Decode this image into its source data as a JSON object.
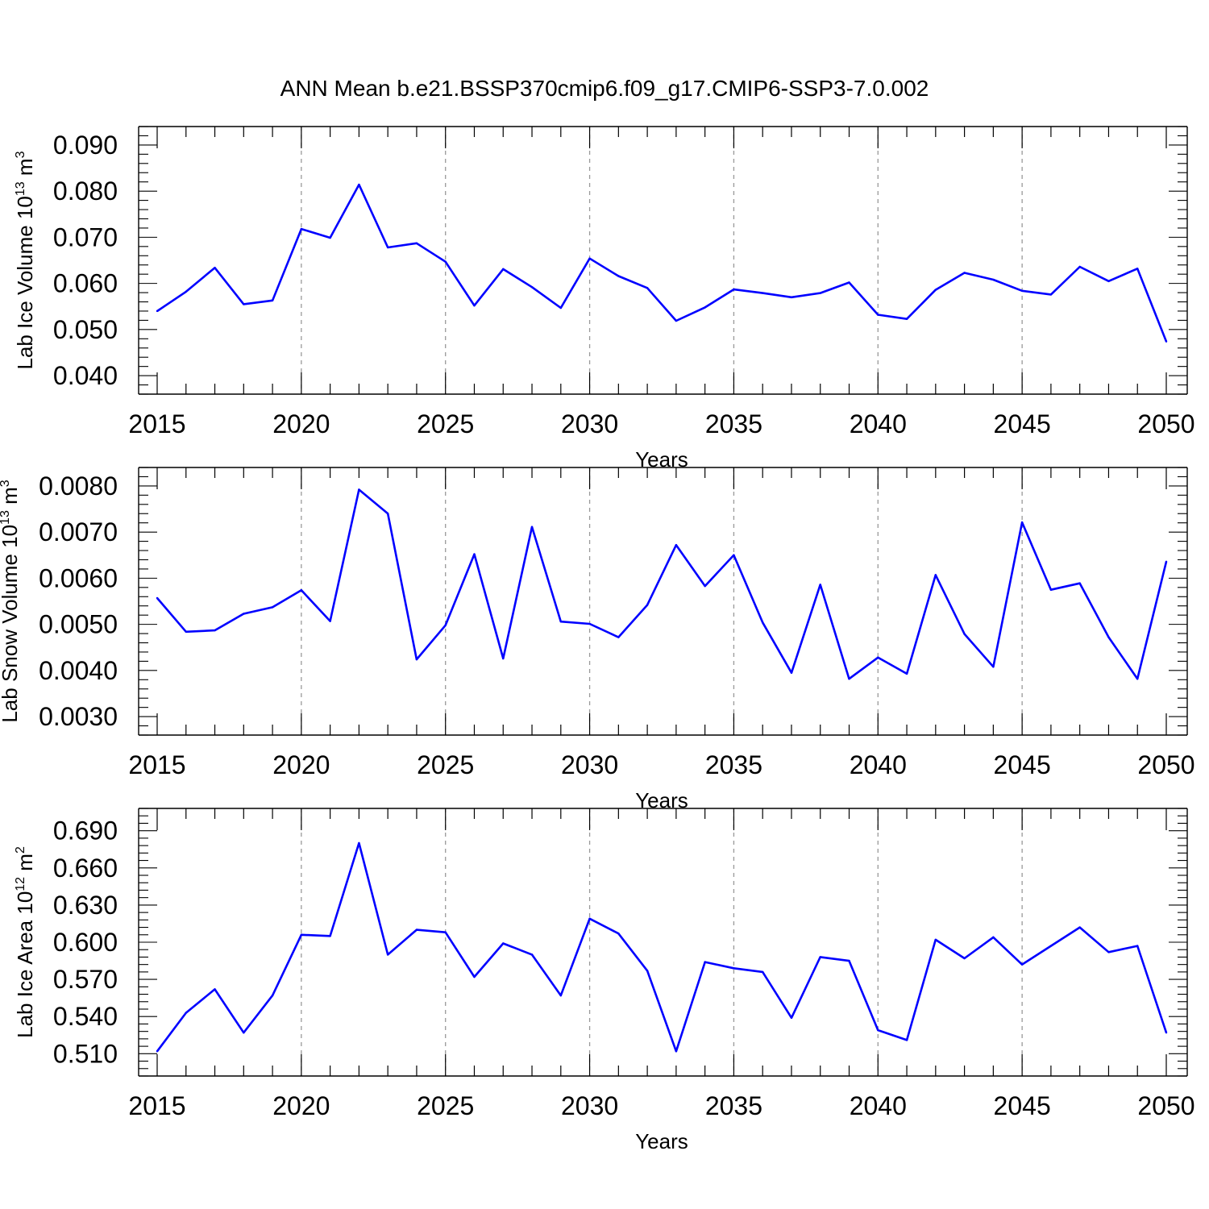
{
  "figure_title": "ANN Mean b.e21.BSSP370cmip6.f09_g17.CMIP6-SSP3-7.0.002",
  "colors": {
    "line": "#0000ff",
    "axis": "#000000",
    "grid": "#999999",
    "background": "#ffffff"
  },
  "chart_data": [
    {
      "type": "line",
      "title": "",
      "xlabel": "Years",
      "ylabel": "Lab Ice Volume 10",
      "ylabel_exp": "13",
      "ylabel_unit": " m",
      "ylabel_unit_exp": "3",
      "xlim": [
        2015,
        2050
      ],
      "ylim": [
        0.036,
        0.094
      ],
      "x_ticks": [
        "2015",
        "2020",
        "2025",
        "2030",
        "2035",
        "2040",
        "2045",
        "2050"
      ],
      "y_ticks": [
        "0.040",
        "0.050",
        "0.060",
        "0.070",
        "0.080",
        "0.090"
      ],
      "grid": "vertical dashed at major x ticks",
      "x": [
        2015,
        2016,
        2017,
        2018,
        2019,
        2020,
        2021,
        2022,
        2023,
        2024,
        2025,
        2026,
        2027,
        2028,
        2029,
        2030,
        2031,
        2032,
        2033,
        2034,
        2035,
        2036,
        2037,
        2038,
        2039,
        2040,
        2041,
        2042,
        2043,
        2044,
        2045,
        2046,
        2047,
        2048,
        2049,
        2050
      ],
      "series": [
        {
          "values": [
            0.054,
            0.0582,
            0.0634,
            0.0555,
            0.0563,
            0.0718,
            0.0699,
            0.0814,
            0.0678,
            0.0687,
            0.0647,
            0.0552,
            0.0631,
            0.0592,
            0.0547,
            0.0654,
            0.0616,
            0.059,
            0.0519,
            0.0548,
            0.0587,
            0.0579,
            0.057,
            0.0579,
            0.0602,
            0.0532,
            0.0523,
            0.0586,
            0.0623,
            0.0608,
            0.0584,
            0.0576,
            0.0636,
            0.0605,
            0.0632,
            0.0474
          ]
        }
      ]
    },
    {
      "type": "line",
      "title": "",
      "xlabel": "Years",
      "ylabel": "Lab Snow Volume 10",
      "ylabel_exp": "13",
      "ylabel_unit": " m",
      "ylabel_unit_exp": "3",
      "xlim": [
        2015,
        2050
      ],
      "ylim": [
        0.0026,
        0.0084
      ],
      "x_ticks": [
        "2015",
        "2020",
        "2025",
        "2030",
        "2035",
        "2040",
        "2045",
        "2050"
      ],
      "y_ticks": [
        "0.0030",
        "0.0040",
        "0.0050",
        "0.0060",
        "0.0070",
        "0.0080"
      ],
      "grid": "vertical dashed at major x ticks",
      "x": [
        2015,
        2016,
        2017,
        2018,
        2019,
        2020,
        2021,
        2022,
        2023,
        2024,
        2025,
        2026,
        2027,
        2028,
        2029,
        2030,
        2031,
        2032,
        2033,
        2034,
        2035,
        2036,
        2037,
        2038,
        2039,
        2040,
        2041,
        2042,
        2043,
        2044,
        2045,
        2046,
        2047,
        2048,
        2049,
        2050
      ],
      "series": [
        {
          "values": [
            0.00557,
            0.00484,
            0.00487,
            0.00523,
            0.00537,
            0.00574,
            0.00507,
            0.00792,
            0.0074,
            0.00424,
            0.00498,
            0.00652,
            0.00426,
            0.00711,
            0.00506,
            0.00501,
            0.00472,
            0.00542,
            0.00672,
            0.00583,
            0.0065,
            0.00504,
            0.00395,
            0.00586,
            0.00382,
            0.00428,
            0.00393,
            0.00607,
            0.00479,
            0.00408,
            0.00721,
            0.00575,
            0.00589,
            0.00472,
            0.00382,
            0.00636
          ]
        }
      ]
    },
    {
      "type": "line",
      "title": "",
      "xlabel": "Years",
      "ylabel": "Lab Ice Area 10",
      "ylabel_exp": "12",
      "ylabel_unit": " m",
      "ylabel_unit_exp": "2",
      "xlim": [
        2015,
        2050
      ],
      "ylim": [
        0.492,
        0.708
      ],
      "x_ticks": [
        "2015",
        "2020",
        "2025",
        "2030",
        "2035",
        "2040",
        "2045",
        "2050"
      ],
      "y_ticks": [
        "0.510",
        "0.540",
        "0.570",
        "0.600",
        "0.630",
        "0.660",
        "0.690"
      ],
      "grid": "vertical dashed at major x ticks",
      "x": [
        2015,
        2016,
        2017,
        2018,
        2019,
        2020,
        2021,
        2022,
        2023,
        2024,
        2025,
        2026,
        2027,
        2028,
        2029,
        2030,
        2031,
        2032,
        2033,
        2034,
        2035,
        2036,
        2037,
        2038,
        2039,
        2040,
        2041,
        2042,
        2043,
        2044,
        2045,
        2046,
        2047,
        2048,
        2049,
        2050
      ],
      "series": [
        {
          "values": [
            0.512,
            0.543,
            0.562,
            0.527,
            0.557,
            0.606,
            0.605,
            0.68,
            0.59,
            0.61,
            0.608,
            0.572,
            0.599,
            0.59,
            0.557,
            0.619,
            0.607,
            0.577,
            0.512,
            0.584,
            0.579,
            0.576,
            0.539,
            0.588,
            0.585,
            0.529,
            0.521,
            0.602,
            0.587,
            0.604,
            0.582,
            0.597,
            0.612,
            0.592,
            0.597,
            0.527
          ]
        }
      ]
    }
  ]
}
